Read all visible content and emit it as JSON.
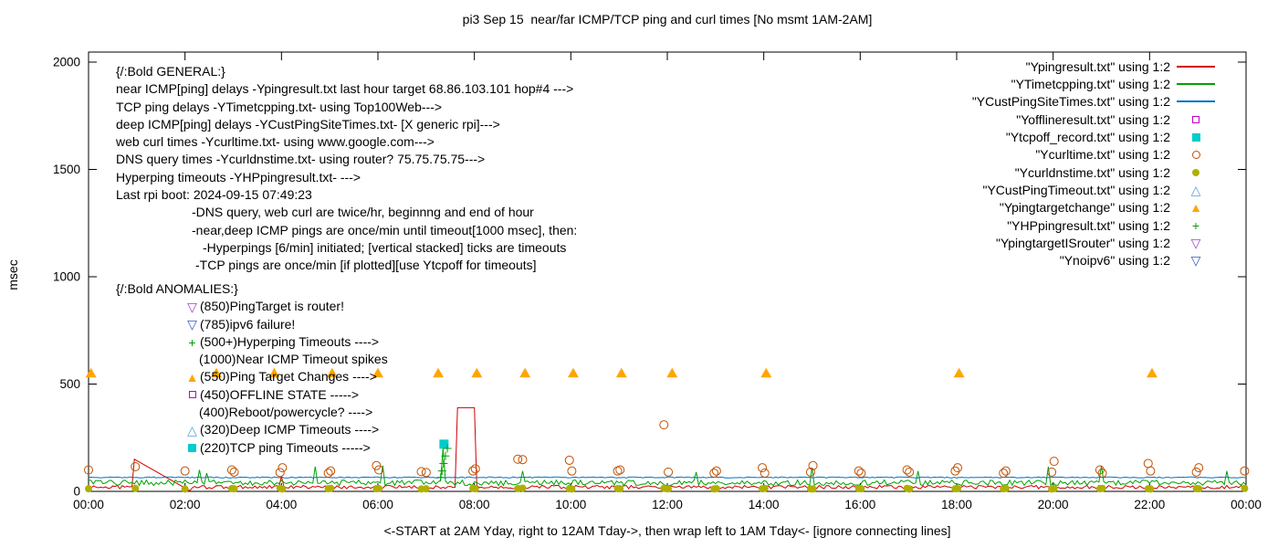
{
  "title": "pi3 Sep 15  near/far ICMP/TCP ping and curl times [No msmt 1AM-2AM]",
  "glyphs": {
    "triangle_up_open": "△",
    "triangle_up_filled": "▲",
    "triangle_down_open": "▽",
    "plus": "+"
  },
  "legend": {
    "entries": [
      {
        "label": "\"Ypingresult.txt\" using 1:2",
        "marker": "line",
        "color": "#d00000"
      },
      {
        "label": "\"YTimetcpping.txt\" using 1:2",
        "marker": "line",
        "color": "#00a000"
      },
      {
        "label": "\"YCustPingSiteTimes.txt\" using 1:2",
        "marker": "line",
        "color": "#0072c8"
      },
      {
        "label": "\"Yofflineresult.txt\" using 1:2",
        "marker": "square-open",
        "color": "#c000c0"
      },
      {
        "label": "\"Ytcpoff_record.txt\" using 1:2",
        "marker": "square-filled",
        "color": "#00cccc"
      },
      {
        "label": "\"Ycurltime.txt\" using 1:2",
        "marker": "circle-open",
        "color": "#c05000"
      },
      {
        "label": "\"Ycurldnstime.txt\" using 1:2",
        "marker": "circle-filled",
        "color": "#b0b000"
      },
      {
        "label": "\"YCustPingTimeout.txt\" using 1:2",
        "marker": "triangle-up-open",
        "color": "#56a0d3"
      },
      {
        "label": "\"Ypingtargetchange\" using 1:2",
        "marker": "triangle-up-filled",
        "color": "#ffa500"
      },
      {
        "label": "\"YHPpingresult.txt\" using 1:2",
        "marker": "plus",
        "color": "#00a000"
      },
      {
        "label": "\"YpingtargetISrouter\" using 1:2",
        "marker": "triangle-down-open",
        "color": "#a040d0"
      },
      {
        "label": "\"Ynoipv6\" using 1:2",
        "marker": "triangle-down-open",
        "color": "#3355cc"
      }
    ]
  },
  "annotations": {
    "general": [
      "{/:Bold GENERAL:}",
      "near ICMP[ping] delays -Ypingresult.txt last hour target 68.86.103.101 hop#4 --->",
      "TCP ping delays -YTimetcpping.txt- using Top100Web--->",
      "deep ICMP[ping] delays -YCustPingSiteTimes.txt- [X generic rpi]--->",
      "web curl times -Ycurltime.txt- using www.google.com--->",
      "DNS query times -Ycurldnstime.txt- using router? 75.75.75.75--->",
      "Hyperping timeouts -YHPpingresult.txt- --->",
      "Last rpi boot: 2024-09-15 07:49:23",
      "-DNS query, web curl are twice/hr, beginnng and end of hour",
      "-near,deep ICMP pings are once/min until timeout[1000 msec], then:",
      "-Hyperpings [6/min] initiated; [vertical stacked] ticks are timeouts",
      "-TCP pings are once/min [if plotted][use Ytcpoff for timeouts]"
    ],
    "anomalies": {
      "header": "{/:Bold ANOMALIES:}",
      "items": [
        {
          "marker": "triangle-down-open",
          "color": "#a040d0",
          "label": "(850)PingTarget is router!"
        },
        {
          "marker": "triangle-down-open",
          "color": "#3355cc",
          "label": "(785)ipv6 failure!"
        },
        {
          "marker": "plus",
          "color": "#00a000",
          "label": "(500+)Hyperping Timeouts ---->"
        },
        {
          "marker": "none",
          "color": "",
          "label": "(1000)Near ICMP Timeout spikes"
        },
        {
          "marker": "triangle-up-filled",
          "color": "#ffa500",
          "label": "(550)Ping Target Changes ---->"
        },
        {
          "marker": "square-open",
          "color": "#c000c0",
          "label": "(450)OFFLINE STATE ----->"
        },
        {
          "marker": "none",
          "color": "",
          "label": "(400)Reboot/powercycle? ---->"
        },
        {
          "marker": "triangle-up-open",
          "color": "#56a0d3",
          "label": "(320)Deep ICMP Timeouts ---->"
        },
        {
          "marker": "square-filled",
          "color": "#00cccc",
          "label": "(220)TCP ping Timeouts ----->"
        }
      ]
    }
  },
  "chart_data": {
    "type": "line",
    "title": "pi3 Sep 15  near/far ICMP/TCP ping and curl times [No msmt 1AM-2AM]",
    "x_axis": {
      "label": "<-START at 2AM Yday, right to 12AM Tday->, then wrap left to 1AM Tday<- [ignore connecting lines]",
      "ticks": [
        "00:00",
        "02:00",
        "04:00",
        "06:00",
        "08:00",
        "10:00",
        "12:00",
        "14:00",
        "16:00",
        "18:00",
        "20:00",
        "22:00",
        "00:00"
      ],
      "tick_interval_hours": 2,
      "range_hours": [
        0,
        24
      ]
    },
    "y_axis": {
      "label": "msec",
      "ticks": [
        0,
        500,
        1000,
        1500,
        2000
      ],
      "range": [
        0,
        2000
      ]
    },
    "grid": false,
    "legend_position": "top-right-inside",
    "line_series": [
      {
        "name": "Ypingresult.txt",
        "color": "#d00000",
        "baseline": 20,
        "noise": 8,
        "gaps": [
          [
            0.96,
            2.09
          ]
        ],
        "overrides": [
          [
            7.63,
            8.03,
            390
          ]
        ],
        "spikes": [
          [
            0.95,
            150
          ],
          [
            2.1,
            3
          ],
          [
            4.0,
            70
          ]
        ]
      },
      {
        "name": "YTimetcpping.txt",
        "color": "#00a000",
        "baseline": 40,
        "noise": 13,
        "spikes": [
          [
            2.3,
            100
          ],
          [
            2.45,
            85
          ],
          [
            4.7,
            115
          ],
          [
            6.1,
            120
          ],
          [
            7.35,
            200
          ],
          [
            9.0,
            95
          ],
          [
            12.6,
            90
          ],
          [
            15.0,
            110
          ],
          [
            17.2,
            95
          ],
          [
            19.9,
            115
          ],
          [
            21.0,
            120
          ],
          [
            23.6,
            95
          ]
        ]
      },
      {
        "name": "YCustPingSiteTimes.txt",
        "color": "#0072c8",
        "baseline": 65,
        "noise": 2.5
      }
    ],
    "scatter_series": [
      {
        "name": "Yofflineresult.txt",
        "marker": "square-open",
        "color": "#c000c0",
        "points": []
      },
      {
        "name": "Ytcpoff_record.txt",
        "marker": "square-filled",
        "color": "#00cccc",
        "points": [
          [
            7.37,
            220
          ]
        ]
      },
      {
        "name": "Ycurltime.txt",
        "marker": "circle-open",
        "color": "#c05000",
        "points": [
          [
            0.0,
            100
          ],
          [
            0.97,
            115
          ],
          [
            2.0,
            95
          ],
          [
            2.97,
            100
          ],
          [
            3.02,
            90
          ],
          [
            3.97,
            88
          ],
          [
            4.02,
            110
          ],
          [
            4.97,
            85
          ],
          [
            5.02,
            95
          ],
          [
            5.97,
            120
          ],
          [
            6.02,
            100
          ],
          [
            6.9,
            92
          ],
          [
            7.0,
            88
          ],
          [
            7.97,
            95
          ],
          [
            8.02,
            105
          ],
          [
            8.9,
            150
          ],
          [
            9.0,
            148
          ],
          [
            9.97,
            145
          ],
          [
            10.02,
            95
          ],
          [
            10.97,
            95
          ],
          [
            11.02,
            100
          ],
          [
            11.93,
            310
          ],
          [
            12.02,
            90
          ],
          [
            12.97,
            85
          ],
          [
            13.02,
            95
          ],
          [
            13.97,
            110
          ],
          [
            14.02,
            85
          ],
          [
            14.97,
            90
          ],
          [
            15.02,
            120
          ],
          [
            15.97,
            95
          ],
          [
            16.02,
            85
          ],
          [
            16.97,
            100
          ],
          [
            17.02,
            90
          ],
          [
            17.97,
            95
          ],
          [
            18.02,
            110
          ],
          [
            18.97,
            85
          ],
          [
            19.02,
            95
          ],
          [
            19.97,
            90
          ],
          [
            20.02,
            140
          ],
          [
            20.97,
            100
          ],
          [
            21.02,
            85
          ],
          [
            21.97,
            130
          ],
          [
            22.02,
            95
          ],
          [
            22.97,
            90
          ],
          [
            23.02,
            110
          ],
          [
            23.97,
            95
          ]
        ]
      },
      {
        "name": "Ycurldnstime.txt",
        "marker": "circle-filled",
        "color": "#b0b000",
        "points": [
          [
            0.0,
            12
          ],
          [
            0.97,
            14
          ],
          [
            2.0,
            11
          ],
          [
            2.97,
            13
          ],
          [
            3.02,
            12
          ],
          [
            3.97,
            15
          ],
          [
            4.02,
            11
          ],
          [
            4.97,
            12
          ],
          [
            5.02,
            14
          ],
          [
            5.97,
            12
          ],
          [
            6.02,
            13
          ],
          [
            6.9,
            11
          ],
          [
            7.0,
            12
          ],
          [
            7.97,
            14
          ],
          [
            8.02,
            12
          ],
          [
            8.9,
            13
          ],
          [
            9.0,
            15
          ],
          [
            9.97,
            12
          ],
          [
            10.02,
            11
          ],
          [
            10.97,
            13
          ],
          [
            11.02,
            12
          ],
          [
            11.93,
            14
          ],
          [
            12.02,
            12
          ],
          [
            12.97,
            11
          ],
          [
            13.02,
            13
          ],
          [
            13.97,
            12
          ],
          [
            14.02,
            14
          ],
          [
            14.97,
            12
          ],
          [
            15.02,
            11
          ],
          [
            15.97,
            13
          ],
          [
            16.02,
            12
          ],
          [
            16.97,
            14
          ],
          [
            17.02,
            11
          ],
          [
            17.97,
            12
          ],
          [
            18.02,
            13
          ],
          [
            18.97,
            12
          ],
          [
            19.02,
            14
          ],
          [
            19.97,
            11
          ],
          [
            20.02,
            13
          ],
          [
            20.97,
            12
          ],
          [
            21.02,
            14
          ],
          [
            21.97,
            12
          ],
          [
            22.02,
            11
          ],
          [
            22.97,
            13
          ],
          [
            23.02,
            12
          ],
          [
            23.97,
            14
          ]
        ]
      },
      {
        "name": "YCustPingTimeout.txt",
        "marker": "triangle-up-open",
        "color": "#56a0d3",
        "points": []
      },
      {
        "name": "Ypingtargetchange",
        "marker": "triangle-up-filled",
        "color": "#ffa500",
        "points": [
          [
            0.05,
            550
          ],
          [
            2.65,
            550
          ],
          [
            3.85,
            550
          ],
          [
            5.05,
            550
          ],
          [
            6.0,
            550
          ],
          [
            7.25,
            550
          ],
          [
            8.05,
            550
          ],
          [
            9.05,
            550
          ],
          [
            10.05,
            550
          ],
          [
            11.05,
            550
          ],
          [
            12.1,
            550
          ],
          [
            14.05,
            550
          ],
          [
            18.05,
            550
          ],
          [
            22.05,
            550
          ]
        ]
      },
      {
        "name": "YHPpingresult.txt",
        "marker": "plus",
        "color": "#00a000",
        "points": [
          [
            7.3,
            65
          ],
          [
            7.33,
            95
          ],
          [
            7.36,
            130
          ],
          [
            7.4,
            165
          ],
          [
            7.44,
            200
          ]
        ]
      },
      {
        "name": "YpingtargetISrouter",
        "marker": "triangle-down-open",
        "color": "#a040d0",
        "points": []
      },
      {
        "name": "Ynoipv6",
        "marker": "triangle-down-open",
        "color": "#3355cc",
        "points": []
      }
    ]
  }
}
